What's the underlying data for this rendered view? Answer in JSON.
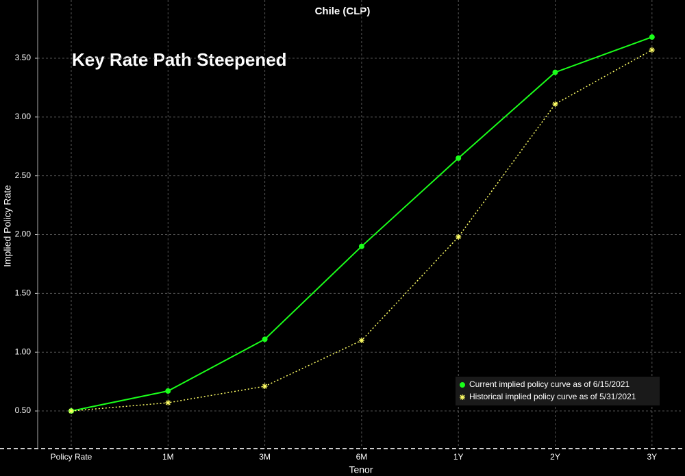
{
  "chart_data": {
    "type": "line",
    "title": "Chile (CLP)",
    "annotation": "Key Rate Path Steepened",
    "x_label": "Tenor",
    "y_label": "Implied Policy Rate",
    "categories": [
      "Policy Rate",
      "1M",
      "3M",
      "6M",
      "1Y",
      "2Y",
      "3Y"
    ],
    "series": [
      {
        "name": "Current implied policy curve as of 6/15/2021",
        "color": "#1aff1a",
        "marker": "circle",
        "style": "solid",
        "values": [
          0.5,
          0.67,
          1.11,
          1.9,
          2.65,
          3.38,
          3.68
        ]
      },
      {
        "name": "Historical implied policy curve as of 5/31/2021",
        "color": "#ffff66",
        "marker": "asterisk",
        "style": "dotted",
        "values": [
          0.5,
          0.57,
          0.71,
          1.1,
          1.98,
          3.11,
          3.57
        ]
      }
    ],
    "ylim": [
      0.18,
      3.995
    ],
    "yticks": [
      {
        "value": 0.5,
        "label": "0.50"
      },
      {
        "value": 1,
        "label": "1.00"
      },
      {
        "value": 1.5,
        "label": "1.50"
      },
      {
        "value": 2,
        "label": "2.00"
      },
      {
        "value": 2.5,
        "label": "2.50"
      },
      {
        "value": 3,
        "label": "3.00"
      },
      {
        "value": 3.5,
        "label": "3.50"
      }
    ],
    "grid": true,
    "legend": "lower right"
  }
}
